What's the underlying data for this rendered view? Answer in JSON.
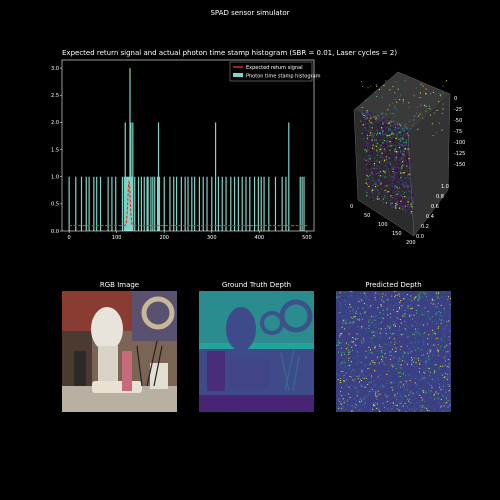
{
  "window": {
    "title": "SPAD sensor simulator"
  },
  "histogram": {
    "title": "Expected return signal and actual photon time stamp histogram (SBR = 0.01, Laser cycles = 2)",
    "legend": [
      "Expected return signal",
      "Photon time stamp histogram"
    ],
    "colors": {
      "signal": "#e8302a",
      "bars": "#7fd6c8"
    }
  },
  "scatter3d": {
    "z_ticks": [
      "0",
      "-25",
      "-50",
      "-75",
      "-100",
      "-125",
      "-150"
    ],
    "x_ticks": [
      "0",
      "50",
      "100",
      "150",
      "200"
    ],
    "y_ticks": [
      "0.0",
      "0.2",
      "0.4",
      "0.6",
      "0.8",
      "1.0"
    ]
  },
  "panels": {
    "rgb_title": "RGB Image",
    "gt_title": "Ground Truth Depth",
    "pred_title": "Predicted Depth"
  },
  "chart_data": {
    "type": "bar",
    "title": "Expected return signal and actual photon time stamp histogram (SBR = 0.01, Laser cycles = 2)",
    "xlabel": "",
    "ylabel": "",
    "xlim": [
      -15,
      515
    ],
    "ylim": [
      0,
      3.15
    ],
    "x_ticks": [
      0,
      100,
      200,
      300,
      400,
      500
    ],
    "y_ticks": [
      0.0,
      0.5,
      1.0,
      1.5,
      2.0,
      2.5,
      3.0
    ],
    "legend_position": "top-right",
    "grid": false,
    "series": [
      {
        "name": "Photon time stamp histogram",
        "type": "bar",
        "x": [
          0,
          14,
          26,
          36,
          42,
          52,
          58,
          66,
          82,
          90,
          98,
          112,
          116,
          118,
          120,
          122,
          124,
          126,
          128,
          130,
          132,
          134,
          138,
          146,
          152,
          158,
          164,
          166,
          172,
          176,
          180,
          186,
          188,
          190,
          200,
          212,
          220,
          226,
          236,
          244,
          250,
          258,
          264,
          274,
          282,
          290,
          300,
          308,
          314,
          322,
          330,
          340,
          348,
          356,
          364,
          372,
          380,
          390,
          398,
          404,
          410,
          420,
          434,
          448,
          456,
          462,
          486,
          490,
          494
        ],
        "values": [
          1,
          1,
          1,
          1,
          1,
          1,
          1,
          1,
          1,
          1,
          1,
          1,
          1,
          2,
          1,
          1,
          1,
          1,
          3,
          2,
          1,
          2,
          1,
          1,
          1,
          1,
          1,
          1,
          1,
          1,
          1,
          1,
          2,
          1,
          1,
          1,
          1,
          1,
          1,
          1,
          1,
          1,
          1,
          1,
          1,
          1,
          1,
          2,
          1,
          1,
          1,
          1,
          1,
          1,
          1,
          1,
          1,
          1,
          1,
          1,
          1,
          1,
          1,
          1,
          1,
          2,
          1,
          1,
          1
        ]
      },
      {
        "name": "Expected return signal",
        "type": "line",
        "baseline": 0.1,
        "peak_x": 126,
        "peak_y": 0.9,
        "sigma": 2.5
      }
    ]
  }
}
